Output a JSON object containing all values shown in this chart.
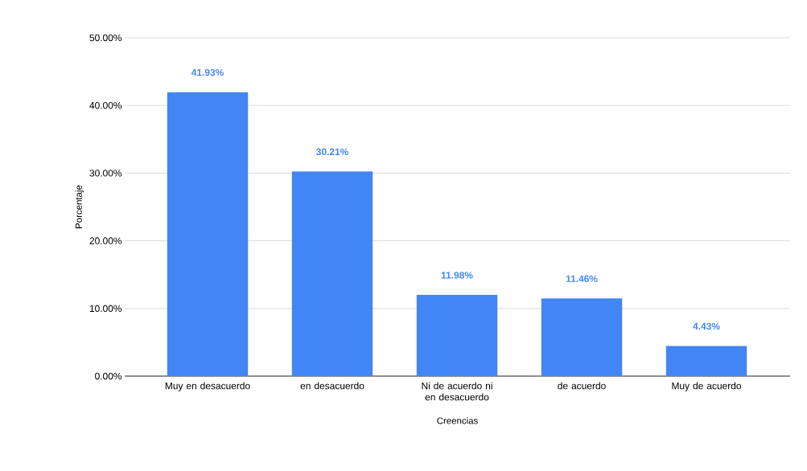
{
  "chart_data": {
    "type": "bar",
    "xlabel": "Creencias",
    "ylabel": "Porcentaje",
    "categories": [
      "Muy en desacuerdo",
      "en desacuerdo",
      "Ni de acuerdo ni en desacuerdo",
      "de acuerdo",
      "Muy de acuerdo"
    ],
    "values": [
      41.93,
      30.21,
      11.98,
      11.46,
      4.43
    ],
    "value_labels": [
      "41.93%",
      "30.21%",
      "11.98%",
      "11.46%",
      "4.43%"
    ],
    "color": "#4285f4",
    "ylim": [
      0,
      50
    ],
    "yticks": [
      {
        "value": 0,
        "label": "0.00%"
      },
      {
        "value": 10,
        "label": "10.00%"
      },
      {
        "value": 20,
        "label": "20.00%"
      },
      {
        "value": 30,
        "label": "30.00%"
      },
      {
        "value": 40,
        "label": "40.00%"
      },
      {
        "value": 50,
        "label": "50.00%"
      }
    ],
    "grid": "y"
  }
}
